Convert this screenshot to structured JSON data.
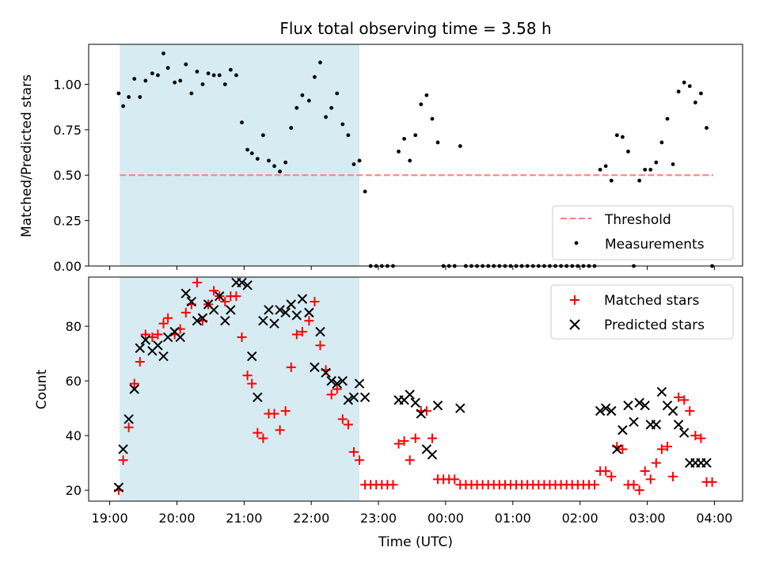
{
  "title": "Flux total observing time = 3.58 h",
  "chart_data": [
    {
      "type": "scatter",
      "panel": "top",
      "title": "Flux total observing time = 3.58 h",
      "xlabel": "",
      "ylabel": "Matched/Predicted stars",
      "xlim": [
        "19:00",
        "04:00"
      ],
      "ylim": [
        0,
        1.22
      ],
      "yticks": [
        "0.00",
        "0.25",
        "0.50",
        "0.75",
        "1.00"
      ],
      "shaded_span": {
        "from": "19:09",
        "to": "22:43",
        "color": "#add8e6"
      },
      "threshold": {
        "name": "Threshold",
        "value": 0.5,
        "from": "19:09",
        "to": "03:59",
        "color": "#ff7f7f",
        "style": "dashed"
      },
      "legend": {
        "placement": "lower right",
        "entries": [
          "Threshold",
          "Measurements"
        ]
      },
      "series": [
        {
          "name": "Measurements",
          "marker": "dot",
          "color": "#000000",
          "x": [
            "19:08",
            "19:12",
            "19:17",
            "19:22",
            "19:27",
            "19:32",
            "19:38",
            "19:43",
            "19:48",
            "19:52",
            "19:58",
            "20:03",
            "20:08",
            "20:13",
            "20:18",
            "20:23",
            "20:28",
            "20:33",
            "20:38",
            "20:43",
            "20:48",
            "20:53",
            "20:58",
            "21:03",
            "21:07",
            "21:12",
            "21:17",
            "21:22",
            "21:27",
            "21:32",
            "21:37",
            "21:42",
            "21:47",
            "21:52",
            "21:58",
            "22:03",
            "22:08",
            "22:13",
            "22:18",
            "22:23",
            "22:28",
            "22:33",
            "22:38",
            "22:43",
            "22:48",
            "22:53",
            "22:58",
            "23:03",
            "23:08",
            "23:13",
            "23:18",
            "23:23",
            "23:28",
            "23:33",
            "23:38",
            "23:43",
            "23:48",
            "23:53",
            "23:58",
            "00:03",
            "00:08",
            "00:13",
            "00:18",
            "00:23",
            "00:28",
            "00:33",
            "00:38",
            "00:43",
            "00:48",
            "00:53",
            "00:58",
            "01:03",
            "01:08",
            "01:13",
            "01:18",
            "01:23",
            "01:28",
            "01:33",
            "01:38",
            "01:43",
            "01:48",
            "01:53",
            "01:58",
            "02:03",
            "02:08",
            "02:13",
            "02:18",
            "02:23",
            "02:28",
            "02:33",
            "02:38",
            "02:43",
            "02:48",
            "02:53",
            "02:58",
            "03:03",
            "03:08",
            "03:13",
            "03:18",
            "03:23",
            "03:28",
            "03:33",
            "03:38",
            "03:43",
            "03:48",
            "03:53",
            "03:58"
          ],
          "values": [
            0.95,
            0.88,
            0.93,
            1.03,
            0.93,
            1.02,
            1.06,
            1.05,
            1.17,
            1.09,
            1.01,
            1.02,
            1.11,
            0.95,
            1.07,
            1.0,
            1.06,
            1.05,
            1.05,
            1.0,
            1.08,
            1.05,
            0.79,
            0.64,
            0.62,
            0.59,
            0.72,
            0.58,
            0.55,
            0.52,
            0.57,
            0.76,
            0.87,
            0.94,
            0.91,
            1.04,
            1.12,
            0.82,
            0.87,
            0.95,
            0.78,
            0.72,
            0.56,
            0.58,
            0.41,
            0.0,
            0.0,
            0.0,
            0.0,
            0.0,
            0.63,
            0.7,
            0.58,
            0.72,
            0.89,
            0.94,
            0.81,
            0.68,
            0.0,
            0.0,
            0.0,
            0.66,
            0.0,
            0.0,
            0.0,
            0.0,
            0.0,
            0.0,
            0.0,
            0.0,
            0.0,
            0.0,
            0.0,
            0.0,
            0.0,
            0.0,
            0.0,
            0.0,
            0.0,
            0.0,
            0.0,
            0.0,
            0.0,
            0.0,
            0.0,
            0.0,
            0.53,
            0.55,
            0.47,
            0.72,
            0.71,
            0.63,
            0.0,
            0.47,
            0.53,
            0.53,
            0.57,
            0.68,
            0.81,
            0.56,
            0.96,
            1.01,
            0.99,
            0.9,
            0.95,
            0.76,
            0.0
          ]
        }
      ]
    },
    {
      "type": "scatter",
      "panel": "bottom",
      "xlabel": "Time (UTC)",
      "ylabel": "Count",
      "xlim": [
        "19:00",
        "04:00"
      ],
      "xticks": [
        "19:00",
        "20:00",
        "21:00",
        "22:00",
        "23:00",
        "00:00",
        "01:00",
        "02:00",
        "03:00",
        "04:00"
      ],
      "ylim": [
        16,
        98
      ],
      "yticks": [
        "20",
        "40",
        "60",
        "80"
      ],
      "shaded_span": {
        "from": "19:09",
        "to": "22:43",
        "color": "#add8e6"
      },
      "legend": {
        "placement": "upper right",
        "entries": [
          "Matched stars",
          "Predicted stars"
        ]
      },
      "series": [
        {
          "name": "Matched stars",
          "marker": "plus",
          "color": "#ff0000",
          "x": [
            "19:08",
            "19:12",
            "19:17",
            "19:22",
            "19:27",
            "19:32",
            "19:38",
            "19:43",
            "19:48",
            "19:52",
            "19:58",
            "20:03",
            "20:08",
            "20:13",
            "20:18",
            "20:23",
            "20:28",
            "20:33",
            "20:38",
            "20:43",
            "20:48",
            "20:53",
            "20:58",
            "21:03",
            "21:07",
            "21:12",
            "21:17",
            "21:22",
            "21:27",
            "21:32",
            "21:37",
            "21:42",
            "21:47",
            "21:52",
            "21:58",
            "22:03",
            "22:08",
            "22:13",
            "22:18",
            "22:23",
            "22:28",
            "22:33",
            "22:38",
            "22:43",
            "22:48",
            "22:53",
            "22:58",
            "23:03",
            "23:08",
            "23:13",
            "23:18",
            "23:23",
            "23:28",
            "23:33",
            "23:38",
            "23:43",
            "23:48",
            "23:53",
            "23:58",
            "00:03",
            "00:08",
            "00:13",
            "00:18",
            "00:23",
            "00:28",
            "00:33",
            "00:38",
            "00:43",
            "00:48",
            "00:53",
            "00:58",
            "01:03",
            "01:08",
            "01:13",
            "01:18",
            "01:23",
            "01:28",
            "01:33",
            "01:38",
            "01:43",
            "01:48",
            "01:53",
            "01:58",
            "02:03",
            "02:08",
            "02:13",
            "02:18",
            "02:23",
            "02:28",
            "02:33",
            "02:38",
            "02:43",
            "02:48",
            "02:53",
            "02:58",
            "03:03",
            "03:08",
            "03:13",
            "03:18",
            "03:23",
            "03:28",
            "03:33",
            "03:38",
            "03:43",
            "03:48",
            "03:53",
            "03:58"
          ],
          "values": [
            20,
            31,
            43,
            59,
            67,
            77,
            76,
            77,
            81,
            83,
            77,
            79,
            85,
            88,
            96,
            82,
            88,
            93,
            91,
            89,
            91,
            91,
            76,
            62,
            59,
            41,
            39,
            48,
            48,
            42,
            49,
            65,
            77,
            78,
            82,
            89,
            73,
            64,
            55,
            57,
            46,
            44,
            34,
            31,
            22,
            22,
            22,
            22,
            22,
            22,
            37,
            38,
            31,
            39,
            49,
            49,
            39,
            24,
            24,
            24,
            24,
            22,
            22,
            22,
            22,
            22,
            22,
            22,
            22,
            22,
            22,
            22,
            22,
            22,
            22,
            22,
            22,
            22,
            22,
            22,
            22,
            22,
            22,
            22,
            22,
            22,
            27,
            27,
            25,
            36,
            35,
            22,
            22,
            20,
            27,
            24,
            30,
            35,
            36,
            25,
            54,
            53,
            49,
            40,
            39,
            23,
            23
          ]
        },
        {
          "name": "Predicted stars",
          "marker": "x",
          "color": "#000000",
          "x": [
            "19:08",
            "19:12",
            "19:17",
            "19:22",
            "19:27",
            "19:32",
            "19:38",
            "19:43",
            "19:48",
            "19:52",
            "19:58",
            "20:03",
            "20:08",
            "20:13",
            "20:18",
            "20:23",
            "20:28",
            "20:33",
            "20:38",
            "20:43",
            "20:48",
            "20:53",
            "20:58",
            "21:03",
            "21:07",
            "21:12",
            "21:17",
            "21:22",
            "21:27",
            "21:32",
            "21:37",
            "21:42",
            "21:47",
            "21:52",
            "21:58",
            "22:03",
            "22:08",
            "22:13",
            "22:18",
            "22:23",
            "22:28",
            "22:33",
            "22:38",
            "22:43",
            "22:48",
            "23:18",
            "23:23",
            "23:28",
            "23:33",
            "23:38",
            "23:43",
            "23:48",
            "23:53",
            "00:13",
            "02:18",
            "02:23",
            "02:28",
            "02:33",
            "02:38",
            "02:43",
            "02:48",
            "02:53",
            "02:58",
            "03:03",
            "03:08",
            "03:13",
            "03:18",
            "03:23",
            "03:28",
            "03:33",
            "03:38",
            "03:43",
            "03:48",
            "03:53"
          ],
          "values": [
            21,
            35,
            46,
            57,
            72,
            75,
            71,
            73,
            69,
            76,
            78,
            76,
            92,
            89,
            82,
            83,
            88,
            86,
            91,
            82,
            86,
            96,
            96,
            95,
            69,
            54,
            82,
            86,
            81,
            86,
            85,
            88,
            84,
            90,
            85,
            65,
            78,
            63,
            60,
            59,
            60,
            53,
            54,
            59,
            54,
            53,
            53,
            55,
            52,
            48,
            35,
            33,
            51,
            50,
            49,
            50,
            49,
            35,
            42,
            51,
            45,
            52,
            51,
            44,
            44,
            56,
            51,
            49,
            44,
            41,
            30,
            30,
            30,
            30
          ]
        }
      ]
    }
  ]
}
